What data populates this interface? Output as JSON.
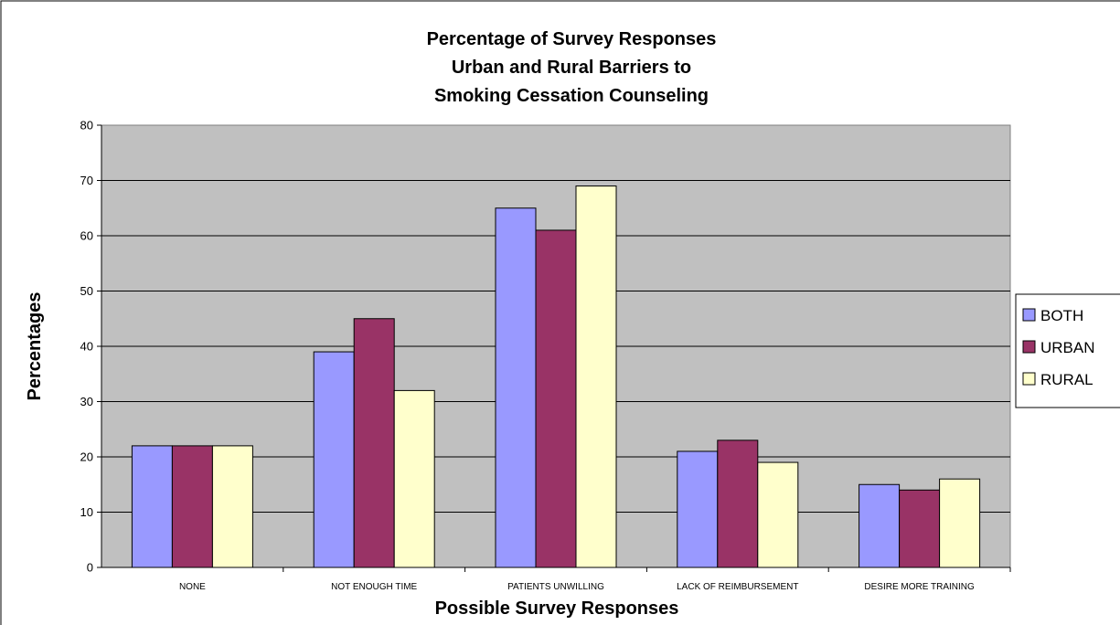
{
  "chart_data": {
    "type": "bar",
    "title": [
      "Percentage of Survey Responses",
      "Urban and Rural Barriers to",
      "Smoking Cessation Counseling"
    ],
    "xlabel": "Possible Survey Responses",
    "ylabel": "Percentages",
    "ylim": [
      0,
      80
    ],
    "yticks": [
      "0",
      "10",
      "20",
      "30",
      "40",
      "50",
      "60",
      "70",
      "80"
    ],
    "categories": [
      "NONE",
      "NOT ENOUGH TIME",
      "PATIENTS UNWILLING",
      "LACK OF REIMBURSEMENT",
      "DESIRE MORE TRAINING"
    ],
    "series": [
      {
        "name": "BOTH",
        "color": "#9999ff",
        "values": [
          22,
          39,
          65,
          21,
          15
        ]
      },
      {
        "name": "URBAN",
        "color": "#993366",
        "values": [
          22,
          45,
          61,
          23,
          14
        ]
      },
      {
        "name": "RURAL",
        "color": "#ffffcc",
        "values": [
          22,
          32,
          69,
          19,
          16
        ]
      }
    ],
    "grid": true,
    "plot_background": "#c0c0c0",
    "legend_position": "right"
  }
}
